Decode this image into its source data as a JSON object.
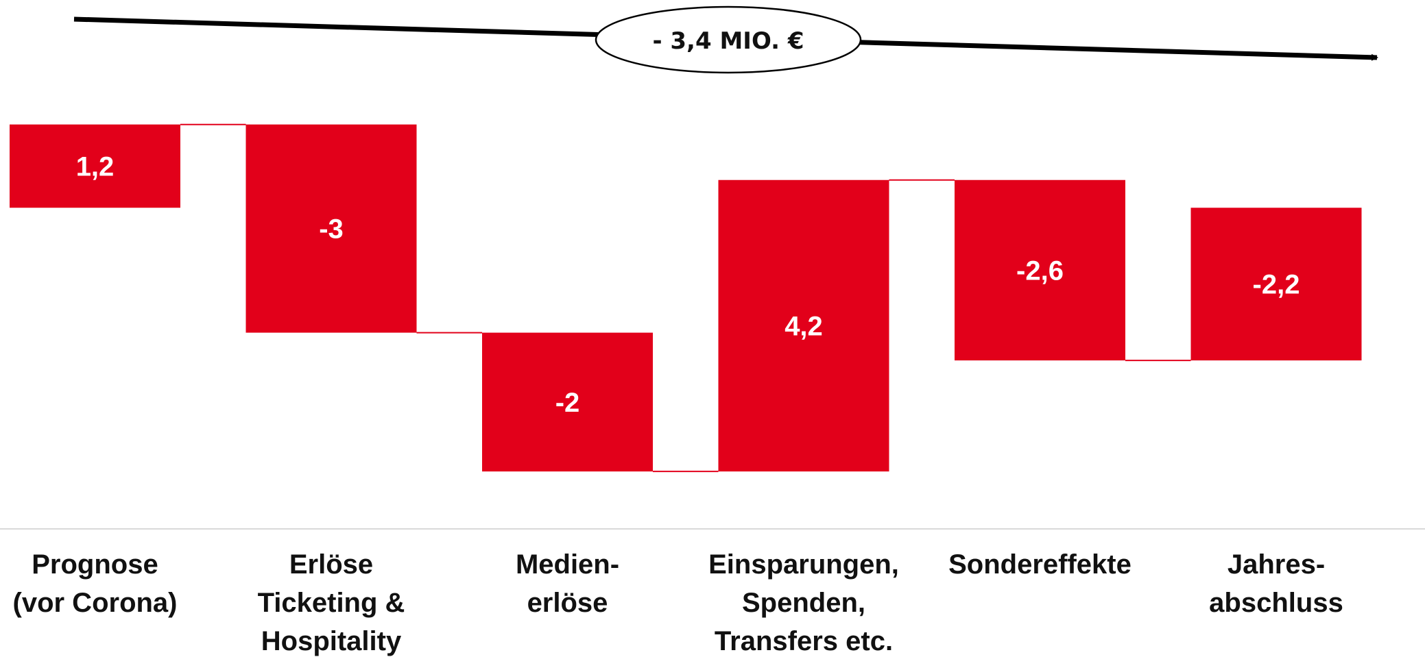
{
  "colors": {
    "bar": "#E2001A",
    "connector": "#E2001A",
    "axis": "#d9d9d9",
    "arrow": "#000000",
    "text": "#111111"
  },
  "banner": {
    "text": "- 3,4 MIO. €"
  },
  "chart_data": {
    "type": "bar",
    "subtype": "waterfall",
    "categories": [
      [
        "Prognose",
        "(vor Corona)"
      ],
      [
        "Erlöse",
        "Ticketing &",
        "Hospitality"
      ],
      [
        "Medien-",
        "erlöse"
      ],
      [
        "Einsparungen,",
        "Spenden,",
        "Transfers etc."
      ],
      [
        "Sondereffekte"
      ],
      [
        "Jahres-",
        "abschluss"
      ]
    ],
    "values": [
      1.2,
      -3,
      -2,
      4.2,
      -2.6,
      -2.2
    ],
    "value_labels": [
      "1,2",
      "-3",
      "-2",
      "4,2",
      "-2,6",
      "-2,2"
    ],
    "totals": [
      true,
      false,
      false,
      false,
      false,
      true
    ],
    "ylim": [
      -5.2,
      2.5
    ],
    "grid": false,
    "legend": "none"
  }
}
